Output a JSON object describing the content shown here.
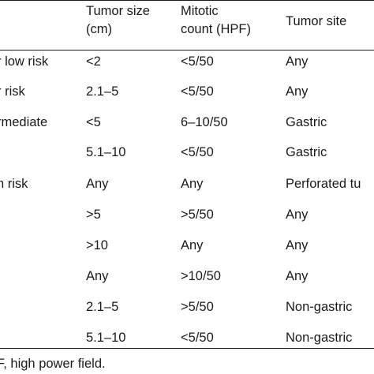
{
  "table": {
    "headers": {
      "col1": "",
      "col1_visible": "t",
      "col2_line1": "Tumor size",
      "col2_line2": "(cm)",
      "col3_line1": "Mitotic",
      "col3_line2": "count (HPF)",
      "col4": "Tumor site"
    },
    "rows": [
      {
        "risk": "r low risk",
        "size": "<2",
        "mitotic": "<5/50",
        "site": "Any"
      },
      {
        "risk": "r risk",
        "size": "2.1–5",
        "mitotic": "<5/50",
        "site": "Any"
      },
      {
        "risk": "rmediate",
        "size": "<5",
        "mitotic": "6–10/50",
        "site": "Gastric"
      },
      {
        "risk": "",
        "size": "5.1–10",
        "mitotic": "<5/50",
        "site": "Gastric"
      },
      {
        "risk": "n risk",
        "size": "Any",
        "mitotic": "Any",
        "site": "Perforated tu"
      },
      {
        "risk": "",
        "size": ">5",
        "mitotic": ">5/50",
        "site": "Any"
      },
      {
        "risk": "",
        "size": ">10",
        "mitotic": "Any",
        "site": "Any"
      },
      {
        "risk": "",
        "size": "Any",
        "mitotic": ">10/50",
        "site": "Any"
      },
      {
        "risk": "",
        "size": "2.1–5",
        "mitotic": ">5/50",
        "site": "Non-gastric"
      },
      {
        "risk": "",
        "size": "5.1–10",
        "mitotic": "<5/50",
        "site": "Non-gastric"
      }
    ]
  },
  "footnote": "F, high power field."
}
